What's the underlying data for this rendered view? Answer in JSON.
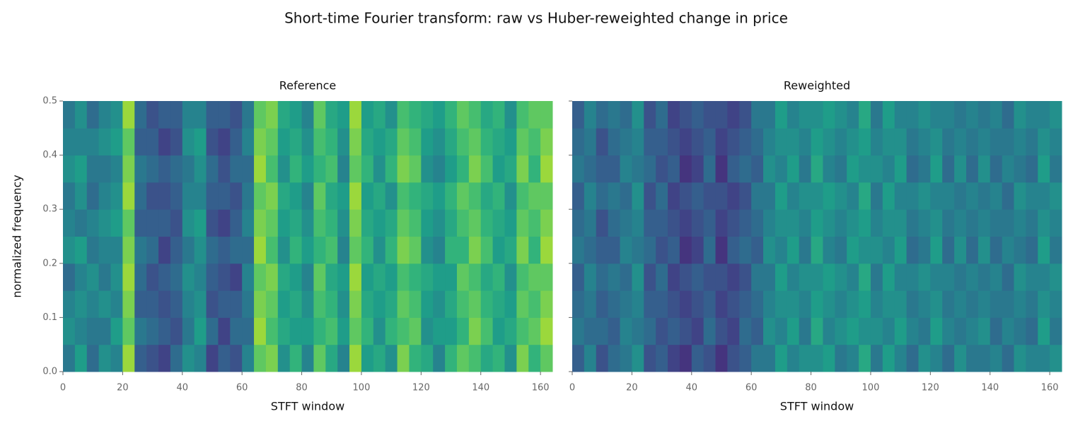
{
  "title": "Short-time Fourier transform: raw vs Huber-reweighted change in price",
  "chart_data": [
    {
      "type": "heatmap",
      "title": "Reference",
      "xlabel": "STFT window",
      "ylabel": "normalized frequency",
      "colormap": "viridis",
      "zlim": [
        0,
        1
      ],
      "xlim": [
        0,
        164
      ],
      "xticks": [
        0,
        20,
        40,
        60,
        80,
        100,
        120,
        140,
        160
      ],
      "ylim": [
        0,
        0.5
      ],
      "yticks": [
        0.0,
        0.1,
        0.2,
        0.3,
        0.4,
        0.5
      ],
      "ytick_labels": true,
      "z": [
        [
          0.4,
          0.55,
          0.35,
          0.5,
          0.45,
          0.85,
          0.3,
          0.25,
          0.2,
          0.35,
          0.5,
          0.45,
          0.2,
          0.3,
          0.25,
          0.45,
          0.75,
          0.8,
          0.5,
          0.65,
          0.45,
          0.75,
          0.6,
          0.45,
          0.85,
          0.55,
          0.6,
          0.5,
          0.8,
          0.65,
          0.6,
          0.45,
          0.65,
          0.75,
          0.7,
          0.6,
          0.65,
          0.5,
          0.8,
          0.65,
          0.75
        ],
        [
          0.5,
          0.45,
          0.4,
          0.4,
          0.55,
          0.75,
          0.4,
          0.35,
          0.3,
          0.25,
          0.4,
          0.55,
          0.35,
          0.2,
          0.35,
          0.35,
          0.85,
          0.7,
          0.6,
          0.55,
          0.55,
          0.65,
          0.7,
          0.55,
          0.75,
          0.65,
          0.5,
          0.65,
          0.7,
          0.75,
          0.5,
          0.55,
          0.55,
          0.65,
          0.8,
          0.7,
          0.55,
          0.6,
          0.7,
          0.75,
          0.85
        ],
        [
          0.45,
          0.5,
          0.45,
          0.5,
          0.45,
          0.8,
          0.3,
          0.3,
          0.25,
          0.3,
          0.45,
          0.5,
          0.25,
          0.3,
          0.3,
          0.4,
          0.8,
          0.75,
          0.55,
          0.6,
          0.5,
          0.7,
          0.65,
          0.5,
          0.8,
          0.6,
          0.55,
          0.6,
          0.75,
          0.7,
          0.55,
          0.5,
          0.6,
          0.7,
          0.75,
          0.65,
          0.6,
          0.55,
          0.75,
          0.7,
          0.8
        ],
        [
          0.35,
          0.45,
          0.5,
          0.4,
          0.5,
          0.85,
          0.35,
          0.25,
          0.3,
          0.35,
          0.5,
          0.45,
          0.3,
          0.25,
          0.2,
          0.45,
          0.75,
          0.8,
          0.6,
          0.55,
          0.45,
          0.75,
          0.6,
          0.55,
          0.85,
          0.55,
          0.6,
          0.55,
          0.7,
          0.65,
          0.6,
          0.55,
          0.55,
          0.75,
          0.7,
          0.6,
          0.65,
          0.5,
          0.7,
          0.75,
          0.75
        ],
        [
          0.5,
          0.55,
          0.4,
          0.45,
          0.45,
          0.8,
          0.4,
          0.35,
          0.2,
          0.3,
          0.4,
          0.5,
          0.35,
          0.3,
          0.35,
          0.35,
          0.85,
          0.7,
          0.5,
          0.65,
          0.55,
          0.65,
          0.7,
          0.45,
          0.75,
          0.65,
          0.5,
          0.65,
          0.8,
          0.75,
          0.5,
          0.45,
          0.65,
          0.65,
          0.8,
          0.7,
          0.55,
          0.6,
          0.8,
          0.65,
          0.85
        ],
        [
          0.45,
          0.4,
          0.45,
          0.5,
          0.55,
          0.75,
          0.3,
          0.3,
          0.3,
          0.25,
          0.5,
          0.55,
          0.25,
          0.2,
          0.3,
          0.45,
          0.8,
          0.75,
          0.55,
          0.6,
          0.5,
          0.7,
          0.65,
          0.5,
          0.8,
          0.6,
          0.55,
          0.6,
          0.75,
          0.7,
          0.55,
          0.5,
          0.6,
          0.7,
          0.75,
          0.65,
          0.6,
          0.55,
          0.75,
          0.7,
          0.8
        ],
        [
          0.4,
          0.5,
          0.35,
          0.45,
          0.5,
          0.85,
          0.35,
          0.25,
          0.25,
          0.3,
          0.45,
          0.45,
          0.3,
          0.3,
          0.25,
          0.4,
          0.75,
          0.8,
          0.6,
          0.55,
          0.45,
          0.75,
          0.6,
          0.55,
          0.85,
          0.55,
          0.6,
          0.5,
          0.7,
          0.65,
          0.6,
          0.55,
          0.65,
          0.75,
          0.7,
          0.6,
          0.65,
          0.5,
          0.7,
          0.75,
          0.75
        ],
        [
          0.5,
          0.55,
          0.4,
          0.4,
          0.45,
          0.8,
          0.4,
          0.35,
          0.3,
          0.35,
          0.4,
          0.5,
          0.35,
          0.25,
          0.35,
          0.35,
          0.85,
          0.7,
          0.5,
          0.65,
          0.55,
          0.65,
          0.7,
          0.45,
          0.75,
          0.65,
          0.5,
          0.65,
          0.8,
          0.75,
          0.5,
          0.45,
          0.55,
          0.65,
          0.8,
          0.7,
          0.55,
          0.6,
          0.8,
          0.65,
          0.85
        ],
        [
          0.45,
          0.45,
          0.45,
          0.5,
          0.55,
          0.75,
          0.3,
          0.3,
          0.2,
          0.25,
          0.5,
          0.55,
          0.25,
          0.2,
          0.3,
          0.45,
          0.8,
          0.75,
          0.55,
          0.6,
          0.5,
          0.7,
          0.65,
          0.5,
          0.8,
          0.6,
          0.55,
          0.6,
          0.75,
          0.7,
          0.55,
          0.5,
          0.6,
          0.7,
          0.75,
          0.65,
          0.6,
          0.55,
          0.75,
          0.7,
          0.8
        ],
        [
          0.4,
          0.5,
          0.35,
          0.45,
          0.5,
          0.85,
          0.35,
          0.25,
          0.3,
          0.3,
          0.45,
          0.45,
          0.3,
          0.3,
          0.25,
          0.4,
          0.75,
          0.8,
          0.6,
          0.55,
          0.45,
          0.75,
          0.6,
          0.55,
          0.85,
          0.55,
          0.6,
          0.5,
          0.7,
          0.65,
          0.6,
          0.55,
          0.65,
          0.75,
          0.7,
          0.6,
          0.65,
          0.5,
          0.7,
          0.75,
          0.75
        ]
      ]
    },
    {
      "type": "heatmap",
      "title": "Reweighted",
      "xlabel": "STFT window",
      "colormap": "viridis",
      "zlim": [
        0,
        1
      ],
      "xlim": [
        0,
        164
      ],
      "xticks": [
        0,
        20,
        40,
        60,
        80,
        100,
        120,
        140,
        160
      ],
      "ylim": [
        0,
        0.5
      ],
      "yticks": [
        0.0,
        0.1,
        0.2,
        0.3,
        0.4,
        0.5
      ],
      "ytick_labels": false,
      "z": [
        [
          0.3,
          0.45,
          0.25,
          0.35,
          0.4,
          0.5,
          0.25,
          0.3,
          0.2,
          0.15,
          0.3,
          0.25,
          0.15,
          0.25,
          0.3,
          0.4,
          0.4,
          0.55,
          0.45,
          0.5,
          0.5,
          0.55,
          0.4,
          0.45,
          0.6,
          0.4,
          0.55,
          0.45,
          0.35,
          0.5,
          0.45,
          0.35,
          0.5,
          0.4,
          0.4,
          0.45,
          0.35,
          0.5,
          0.45,
          0.45,
          0.5
        ],
        [
          0.4,
          0.35,
          0.35,
          0.3,
          0.45,
          0.4,
          0.35,
          0.25,
          0.3,
          0.25,
          0.2,
          0.35,
          0.25,
          0.2,
          0.35,
          0.3,
          0.5,
          0.45,
          0.55,
          0.4,
          0.6,
          0.45,
          0.5,
          0.55,
          0.5,
          0.5,
          0.45,
          0.55,
          0.45,
          0.4,
          0.55,
          0.45,
          0.4,
          0.45,
          0.5,
          0.35,
          0.45,
          0.4,
          0.35,
          0.55,
          0.4
        ],
        [
          0.35,
          0.4,
          0.3,
          0.35,
          0.4,
          0.45,
          0.3,
          0.3,
          0.25,
          0.2,
          0.25,
          0.3,
          0.2,
          0.25,
          0.3,
          0.35,
          0.45,
          0.5,
          0.5,
          0.45,
          0.55,
          0.5,
          0.45,
          0.5,
          0.55,
          0.45,
          0.5,
          0.5,
          0.4,
          0.45,
          0.5,
          0.4,
          0.45,
          0.4,
          0.45,
          0.4,
          0.4,
          0.45,
          0.4,
          0.5,
          0.45
        ],
        [
          0.3,
          0.45,
          0.35,
          0.4,
          0.35,
          0.5,
          0.25,
          0.35,
          0.2,
          0.25,
          0.3,
          0.25,
          0.25,
          0.2,
          0.25,
          0.4,
          0.4,
          0.55,
          0.45,
          0.5,
          0.5,
          0.55,
          0.5,
          0.45,
          0.6,
          0.4,
          0.55,
          0.45,
          0.45,
          0.5,
          0.45,
          0.45,
          0.4,
          0.45,
          0.4,
          0.45,
          0.35,
          0.5,
          0.45,
          0.45,
          0.5
        ],
        [
          0.4,
          0.35,
          0.3,
          0.3,
          0.45,
          0.4,
          0.35,
          0.25,
          0.3,
          0.15,
          0.2,
          0.35,
          0.15,
          0.3,
          0.35,
          0.3,
          0.5,
          0.45,
          0.55,
          0.4,
          0.6,
          0.45,
          0.4,
          0.55,
          0.5,
          0.5,
          0.45,
          0.55,
          0.35,
          0.4,
          0.55,
          0.35,
          0.5,
          0.35,
          0.5,
          0.35,
          0.45,
          0.4,
          0.35,
          0.55,
          0.4
        ],
        [
          0.35,
          0.4,
          0.25,
          0.35,
          0.4,
          0.45,
          0.3,
          0.3,
          0.25,
          0.2,
          0.25,
          0.3,
          0.2,
          0.25,
          0.3,
          0.35,
          0.45,
          0.5,
          0.5,
          0.45,
          0.55,
          0.5,
          0.45,
          0.5,
          0.55,
          0.45,
          0.5,
          0.5,
          0.4,
          0.45,
          0.5,
          0.4,
          0.45,
          0.4,
          0.45,
          0.4,
          0.4,
          0.45,
          0.4,
          0.5,
          0.45
        ],
        [
          0.3,
          0.45,
          0.35,
          0.4,
          0.35,
          0.5,
          0.25,
          0.35,
          0.2,
          0.25,
          0.3,
          0.25,
          0.25,
          0.2,
          0.25,
          0.4,
          0.4,
          0.55,
          0.45,
          0.5,
          0.5,
          0.55,
          0.5,
          0.45,
          0.6,
          0.4,
          0.55,
          0.45,
          0.45,
          0.5,
          0.45,
          0.45,
          0.4,
          0.45,
          0.4,
          0.45,
          0.35,
          0.5,
          0.45,
          0.45,
          0.5
        ],
        [
          0.4,
          0.35,
          0.3,
          0.3,
          0.45,
          0.4,
          0.35,
          0.25,
          0.3,
          0.15,
          0.2,
          0.35,
          0.15,
          0.3,
          0.35,
          0.3,
          0.5,
          0.45,
          0.55,
          0.4,
          0.6,
          0.45,
          0.4,
          0.55,
          0.5,
          0.5,
          0.45,
          0.55,
          0.35,
          0.4,
          0.55,
          0.35,
          0.5,
          0.35,
          0.5,
          0.35,
          0.45,
          0.4,
          0.35,
          0.55,
          0.4
        ],
        [
          0.35,
          0.4,
          0.25,
          0.35,
          0.4,
          0.45,
          0.3,
          0.3,
          0.25,
          0.2,
          0.25,
          0.3,
          0.2,
          0.25,
          0.3,
          0.35,
          0.45,
          0.5,
          0.5,
          0.45,
          0.55,
          0.5,
          0.45,
          0.5,
          0.55,
          0.45,
          0.5,
          0.5,
          0.4,
          0.45,
          0.5,
          0.4,
          0.45,
          0.4,
          0.45,
          0.4,
          0.4,
          0.45,
          0.4,
          0.5,
          0.45
        ],
        [
          0.3,
          0.45,
          0.35,
          0.4,
          0.35,
          0.5,
          0.25,
          0.35,
          0.2,
          0.25,
          0.3,
          0.25,
          0.25,
          0.2,
          0.25,
          0.4,
          0.4,
          0.55,
          0.45,
          0.5,
          0.5,
          0.55,
          0.5,
          0.45,
          0.6,
          0.4,
          0.55,
          0.45,
          0.45,
          0.5,
          0.45,
          0.45,
          0.4,
          0.45,
          0.4,
          0.45,
          0.35,
          0.5,
          0.45,
          0.45,
          0.5
        ]
      ]
    }
  ]
}
